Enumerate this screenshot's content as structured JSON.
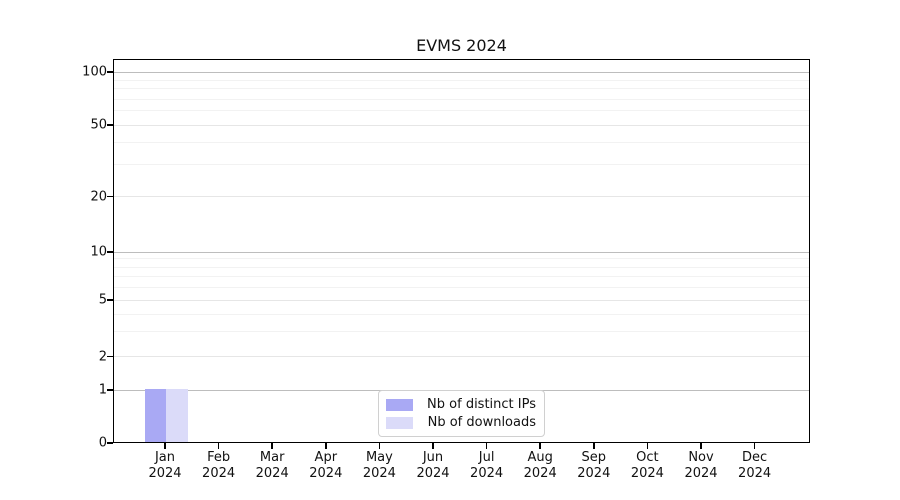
{
  "chart_data": {
    "type": "bar",
    "title": "EVMS 2024",
    "year_label": "2024",
    "categories": [
      "Jan",
      "Feb",
      "Mar",
      "Apr",
      "May",
      "Jun",
      "Jul",
      "Aug",
      "Sep",
      "Oct",
      "Nov",
      "Dec"
    ],
    "series": [
      {
        "name": "Nb of distinct IPs",
        "color": "#a9a9f4",
        "values": [
          1,
          0,
          0,
          0,
          0,
          0,
          0,
          0,
          0,
          0,
          0,
          0
        ]
      },
      {
        "name": "Nb of downloads",
        "color": "#dbdbf9",
        "values": [
          1,
          0,
          0,
          0,
          0,
          0,
          0,
          0,
          0,
          0,
          0,
          0
        ]
      }
    ],
    "y_axis": {
      "scale": "log-with-zero-baseline",
      "tick_values": [
        100,
        50,
        20,
        10,
        5,
        2,
        1,
        0
      ],
      "tick_labels": [
        "100",
        "50",
        "20",
        "10",
        "5",
        "2",
        "1",
        "0"
      ],
      "minor_tick_values": [
        90,
        80,
        70,
        60,
        40,
        30,
        9,
        8,
        7,
        6,
        4,
        3
      ],
      "grid": "on"
    },
    "x_axis": {
      "grid": "off"
    },
    "legend_position": "inside-bottom-center",
    "colors": {
      "grid_major_pow10": "#bdbdbd",
      "grid_major": "#e6e6e6",
      "grid_minor": "#f2f2f2",
      "frame": "#000000",
      "text": "#111111",
      "background": "#ffffff"
    }
  }
}
